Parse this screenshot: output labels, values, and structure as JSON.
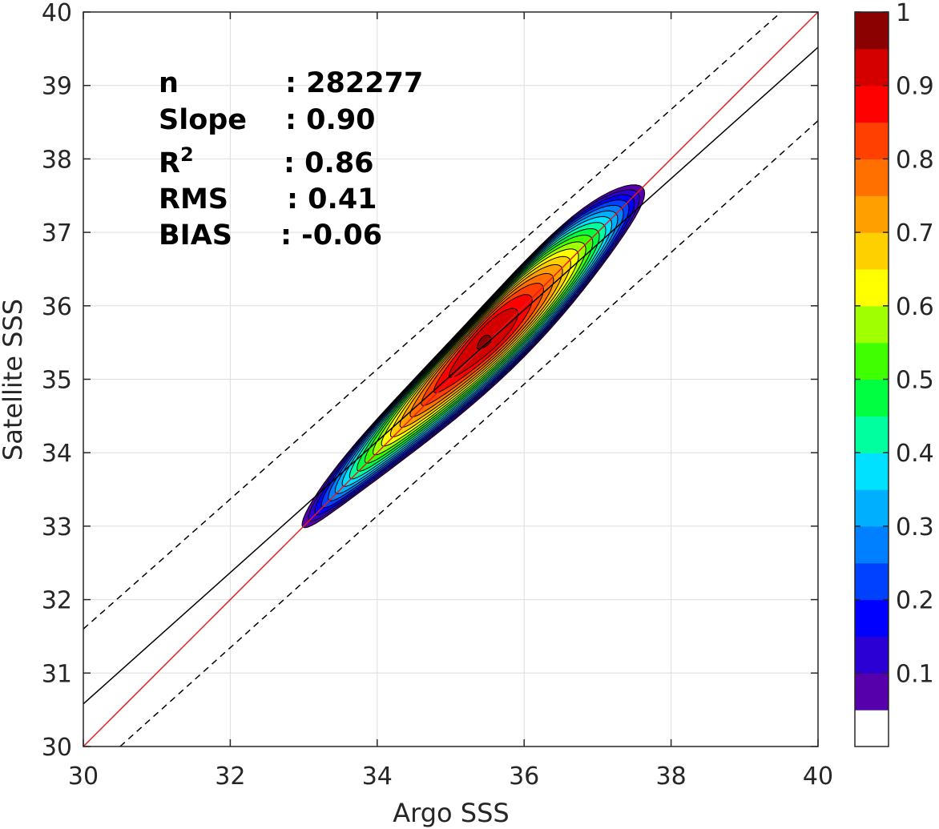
{
  "chart_data": {
    "type": "heatmap",
    "subtype": "density-contour",
    "title": "",
    "xlabel": "Argo SSS",
    "ylabel": "Satellite SSS",
    "xlim": [
      30,
      40
    ],
    "ylim": [
      30,
      40
    ],
    "xticks": [
      30,
      32,
      34,
      36,
      38,
      40
    ],
    "yticks": [
      30,
      31,
      32,
      33,
      34,
      35,
      36,
      37,
      38,
      39,
      40
    ],
    "grid": true,
    "lines": [
      {
        "kind": "one-to-one",
        "color": "#e41a1c",
        "style": "solid",
        "x": [
          30,
          40
        ],
        "y": [
          30,
          40
        ]
      },
      {
        "kind": "regression",
        "color": "#000000",
        "style": "solid",
        "x": [
          30,
          40
        ],
        "y": [
          30.58,
          39.52
        ]
      },
      {
        "kind": "upper-bound",
        "color": "#000000",
        "style": "dashed",
        "x": [
          30,
          39.5
        ],
        "y": [
          31.6,
          40
        ]
      },
      {
        "kind": "lower-bound",
        "color": "#000000",
        "style": "dashed",
        "x": [
          30.5,
          40
        ],
        "y": [
          30,
          38.52
        ]
      }
    ],
    "density": {
      "center": [
        35.3,
        35.3
      ],
      "peak_location": [
        35.45,
        35.5
      ],
      "major_axis_angle_deg": 45,
      "extent_x": [
        33.05,
        37.5
      ],
      "extent_y": [
        33.2,
        37.55
      ]
    },
    "stats": [
      {
        "label": "n",
        "value": ": 282277"
      },
      {
        "label": "Slope",
        "value": ": 0.90"
      },
      {
        "label": "R",
        "sup": "2",
        "value": ": 0.86"
      },
      {
        "label": "RMS",
        "value": ": 0.41"
      },
      {
        "label": "BIAS",
        "value": ": -0.06"
      }
    ],
    "colorbar": {
      "ticks": [
        "0.1",
        "0.2",
        "0.3",
        "0.4",
        "0.5",
        "0.6",
        "0.7",
        "0.8",
        "0.9",
        "1"
      ],
      "tick_values": [
        0.1,
        0.2,
        0.3,
        0.4,
        0.5,
        0.6,
        0.7,
        0.8,
        0.9,
        1.0
      ],
      "range": [
        0,
        1
      ],
      "colors": [
        "#ffffff",
        "#5500aa",
        "#2a00d4",
        "#0000ff",
        "#0040ff",
        "#0080ff",
        "#00b0ff",
        "#00e0ff",
        "#00ff9f",
        "#00ff40",
        "#40ff00",
        "#a0ff00",
        "#ffff00",
        "#ffd000",
        "#ffa000",
        "#ff7000",
        "#ff4000",
        "#ff0000",
        "#d40000",
        "#8b0000"
      ]
    }
  }
}
